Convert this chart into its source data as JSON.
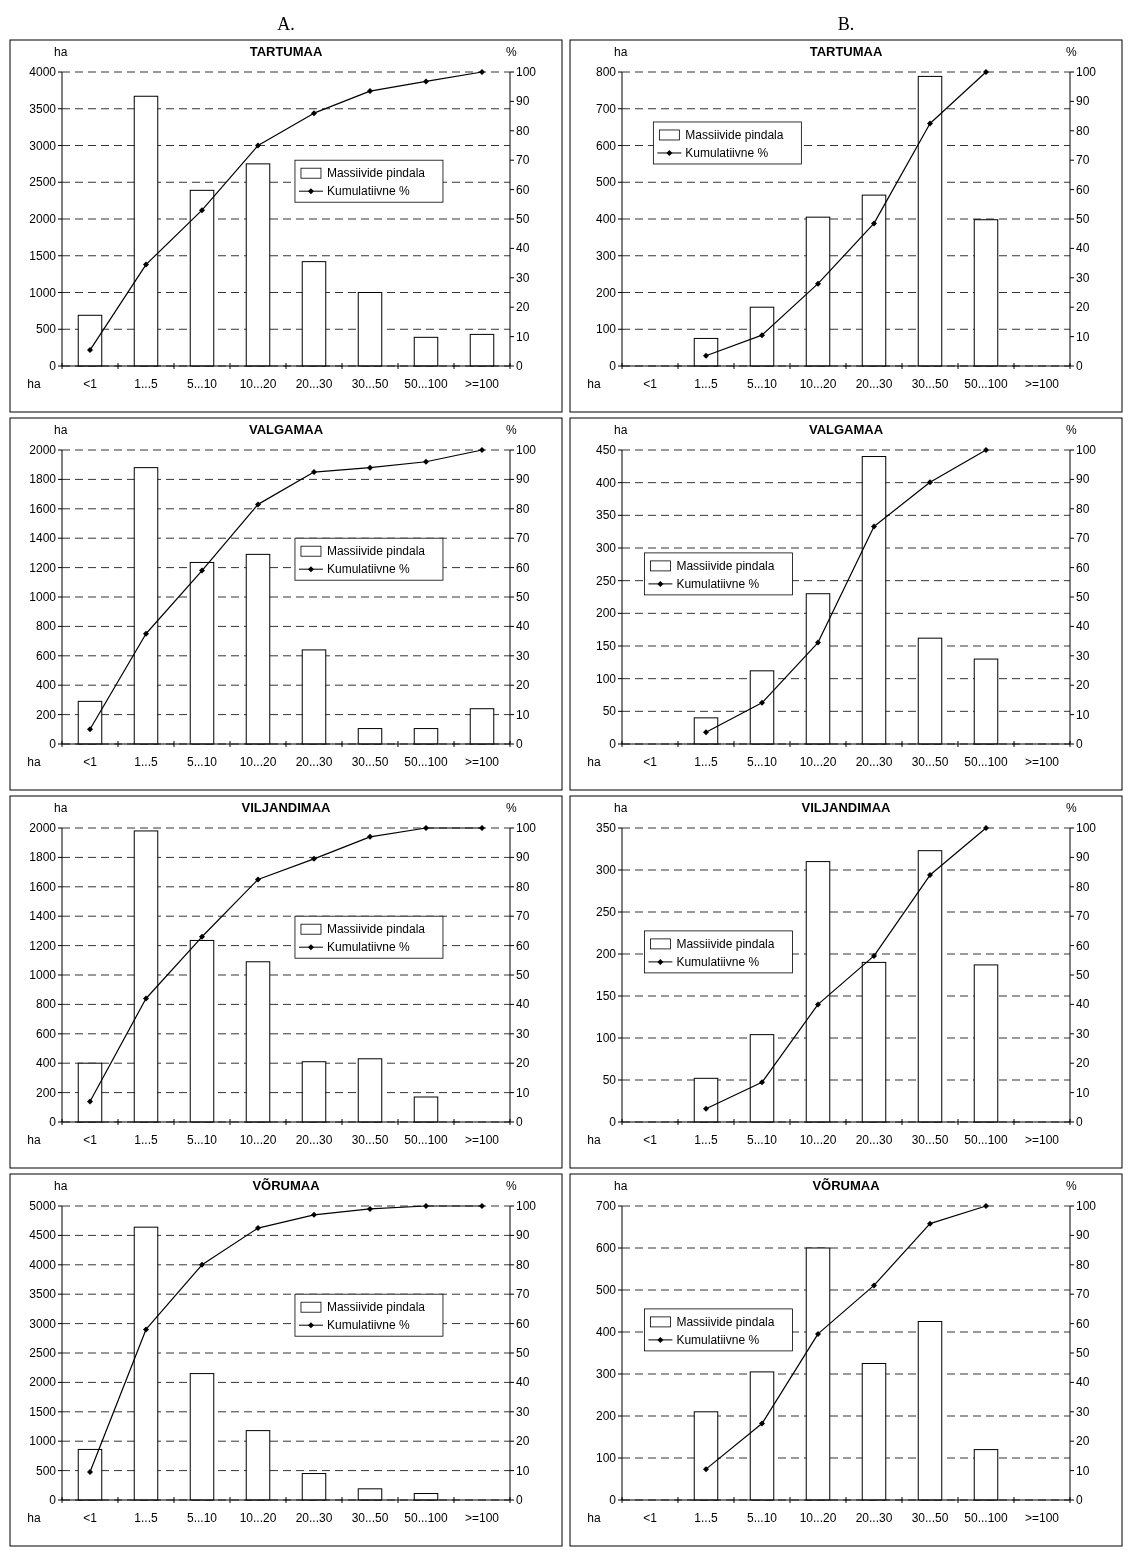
{
  "chart_data": [
    {
      "type": "bar",
      "title": "TARTUMAA",
      "annotations": [
        "A."
      ],
      "xlabel": "ha",
      "ylabel": "ha",
      "y2label": "%",
      "categories": [
        "<1",
        "1...5",
        "5...10",
        "10...20",
        "20...30",
        "30...50",
        "50...100",
        ">=100"
      ],
      "ylim": [
        0,
        4000
      ],
      "yticks": [
        0,
        500,
        1000,
        1500,
        2000,
        2500,
        3000,
        3500,
        4000
      ],
      "y2lim": [
        0,
        100
      ],
      "y2ticks": [
        0,
        10,
        20,
        30,
        40,
        50,
        60,
        70,
        80,
        90,
        100
      ],
      "grid": "y",
      "legend": "right",
      "marker": "diamond",
      "series": [
        {
          "name": "Massiivide pindala",
          "color": "#ffffff",
          "values": [
            690,
            3670,
            2390,
            2750,
            1420,
            1000,
            390,
            430
          ]
        },
        {
          "name": "Kumulatiivne %",
          "type": "line",
          "axis": "y2",
          "color": "#000000",
          "values": [
            5.4,
            34.5,
            53,
            75,
            86,
            93.5,
            96.8,
            100
          ]
        }
      ]
    },
    {
      "type": "bar",
      "title": "TARTUMAA",
      "annotations": [
        "B."
      ],
      "xlabel": "ha",
      "ylabel": "ha",
      "y2label": "%",
      "categories": [
        "<1",
        "1...5",
        "5...10",
        "10...20",
        "20...30",
        "30...50",
        "50...100",
        ">=100"
      ],
      "ylim": [
        0,
        800
      ],
      "yticks": [
        0,
        100,
        200,
        300,
        400,
        500,
        600,
        700,
        800
      ],
      "y2lim": [
        0,
        100
      ],
      "y2ticks": [
        0,
        10,
        20,
        30,
        40,
        50,
        60,
        70,
        80,
        90,
        100
      ],
      "grid": "y",
      "legend": "top left",
      "marker": "diamond",
      "series": [
        {
          "name": "Massiivide pindala",
          "color": "#ffffff",
          "values": [
            null,
            75,
            160,
            405,
            465,
            788,
            398,
            null
          ]
        },
        {
          "name": "Kumulatiivne %",
          "type": "line",
          "axis": "y2",
          "color": "#000000",
          "values": [
            null,
            3.5,
            10.5,
            28,
            48.5,
            82.5,
            100,
            null
          ]
        }
      ]
    },
    {
      "type": "bar",
      "title": "VALGAMAA",
      "xlabel": "ha",
      "ylabel": "ha",
      "y2label": "%",
      "categories": [
        "<1",
        "1...5",
        "5...10",
        "10...20",
        "20...30",
        "30...50",
        "50...100",
        ">=100"
      ],
      "ylim": [
        0,
        2000
      ],
      "yticks": [
        0,
        200,
        400,
        600,
        800,
        1000,
        1200,
        1400,
        1600,
        1800,
        2000
      ],
      "y2lim": [
        0,
        100
      ],
      "y2ticks": [
        0,
        10,
        20,
        30,
        40,
        50,
        60,
        70,
        80,
        90,
        100
      ],
      "grid": "y",
      "legend": "right",
      "marker": "diamond",
      "series": [
        {
          "name": "Massiivide pindala",
          "color": "#ffffff",
          "values": [
            290,
            1880,
            1235,
            1290,
            640,
            105,
            105,
            240
          ]
        },
        {
          "name": "Kumulatiivne %",
          "type": "line",
          "axis": "y2",
          "color": "#000000",
          "values": [
            5,
            37.5,
            59,
            81.5,
            92.5,
            94,
            96,
            100
          ]
        }
      ]
    },
    {
      "type": "bar",
      "title": "VALGAMAA",
      "xlabel": "ha",
      "ylabel": "ha",
      "y2label": "%",
      "categories": [
        "<1",
        "1...5",
        "5...10",
        "10...20",
        "20...30",
        "30...50",
        "50...100",
        ">=100"
      ],
      "ylim": [
        0,
        450
      ],
      "yticks": [
        0,
        50,
        100,
        150,
        200,
        250,
        300,
        350,
        400,
        450
      ],
      "y2lim": [
        0,
        100
      ],
      "y2ticks": [
        0,
        10,
        20,
        30,
        40,
        50,
        60,
        70,
        80,
        90,
        100
      ],
      "grid": "y",
      "legend": "left",
      "marker": "diamond",
      "series": [
        {
          "name": "Massiivide pindala",
          "color": "#ffffff",
          "values": [
            null,
            40,
            112,
            230,
            440,
            162,
            130,
            null
          ]
        },
        {
          "name": "Kumulatiivne %",
          "type": "line",
          "axis": "y2",
          "color": "#000000",
          "values": [
            null,
            4,
            14,
            34.5,
            74,
            89,
            100,
            null
          ]
        }
      ]
    },
    {
      "type": "bar",
      "title": "VILJANDIMAA",
      "xlabel": "ha",
      "ylabel": "ha",
      "y2label": "%",
      "categories": [
        "<1",
        "1...5",
        "5...10",
        "10...20",
        "20...30",
        "30...50",
        "50...100",
        ">=100"
      ],
      "ylim": [
        0,
        2000
      ],
      "yticks": [
        0,
        200,
        400,
        600,
        800,
        1000,
        1200,
        1400,
        1600,
        1800,
        2000
      ],
      "y2lim": [
        0,
        100
      ],
      "y2ticks": [
        0,
        10,
        20,
        30,
        40,
        50,
        60,
        70,
        80,
        90,
        100
      ],
      "grid": "y",
      "legend": "right",
      "marker": "diamond",
      "series": [
        {
          "name": "Massiivide pindala",
          "color": "#ffffff",
          "values": [
            400,
            1980,
            1235,
            1090,
            410,
            430,
            170,
            null
          ]
        },
        {
          "name": "Kumulatiivne %",
          "type": "line",
          "axis": "y2",
          "color": "#000000",
          "values": [
            7,
            42,
            63,
            82.5,
            89.5,
            97,
            100,
            100
          ]
        }
      ]
    },
    {
      "type": "bar",
      "title": "VILJANDIMAA",
      "xlabel": "ha",
      "ylabel": "ha",
      "y2label": "%",
      "categories": [
        "<1",
        "1...5",
        "5...10",
        "10...20",
        "20...30",
        "30...50",
        "50...100",
        ">=100"
      ],
      "ylim": [
        0,
        350
      ],
      "yticks": [
        0,
        50,
        100,
        150,
        200,
        250,
        300,
        350
      ],
      "y2lim": [
        0,
        100
      ],
      "y2ticks": [
        0,
        10,
        20,
        30,
        40,
        50,
        60,
        70,
        80,
        90,
        100
      ],
      "grid": "y",
      "legend": "left",
      "marker": "diamond",
      "series": [
        {
          "name": "Massiivide pindala",
          "color": "#ffffff",
          "values": [
            null,
            52,
            104,
            310,
            190,
            323,
            187,
            null
          ]
        },
        {
          "name": "Kumulatiivne %",
          "type": "line",
          "axis": "y2",
          "color": "#000000",
          "values": [
            null,
            4.5,
            13.5,
            40,
            56.5,
            84,
            100,
            null
          ]
        }
      ]
    },
    {
      "type": "bar",
      "title": "VÕRUMAA",
      "xlabel": "ha",
      "ylabel": "ha",
      "y2label": "%",
      "categories": [
        "<1",
        "1...5",
        "5...10",
        "10...20",
        "20...30",
        "30...50",
        "50...100",
        ">=100"
      ],
      "ylim": [
        0,
        5000
      ],
      "yticks": [
        0,
        500,
        1000,
        1500,
        2000,
        2500,
        3000,
        3500,
        4000,
        4500,
        5000
      ],
      "y2lim": [
        0,
        100
      ],
      "y2ticks": [
        0,
        10,
        20,
        30,
        40,
        50,
        60,
        70,
        80,
        90,
        100
      ],
      "grid": "y",
      "legend": "right",
      "marker": "diamond",
      "series": [
        {
          "name": "Massiivide pindala",
          "color": "#ffffff",
          "values": [
            860,
            4640,
            2150,
            1180,
            450,
            190,
            110,
            null
          ]
        },
        {
          "name": "Kumulatiivne %",
          "type": "line",
          "axis": "y2",
          "color": "#000000",
          "values": [
            9.5,
            58,
            80,
            92.5,
            97,
            99,
            100,
            100
          ]
        }
      ]
    },
    {
      "type": "bar",
      "title": "VÕRUMAA",
      "xlabel": "ha",
      "ylabel": "ha",
      "y2label": "%",
      "categories": [
        "<1",
        "1...5",
        "5...10",
        "10...20",
        "20...30",
        "30...50",
        "50...100",
        ">=100"
      ],
      "ylim": [
        0,
        700
      ],
      "yticks": [
        0,
        100,
        200,
        300,
        400,
        500,
        600,
        700
      ],
      "y2lim": [
        0,
        100
      ],
      "y2ticks": [
        0,
        10,
        20,
        30,
        40,
        50,
        60,
        70,
        80,
        90,
        100
      ],
      "grid": "y",
      "legend": "left",
      "marker": "diamond",
      "series": [
        {
          "name": "Massiivide pindala",
          "color": "#ffffff",
          "values": [
            null,
            210,
            305,
            600,
            325,
            425,
            120,
            null
          ]
        },
        {
          "name": "Kumulatiivne %",
          "type": "line",
          "axis": "y2",
          "color": "#000000",
          "values": [
            null,
            10.5,
            26,
            56.5,
            73,
            94,
            100,
            null
          ]
        }
      ]
    }
  ]
}
